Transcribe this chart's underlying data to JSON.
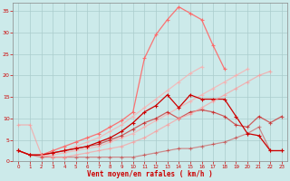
{
  "x": [
    0,
    1,
    2,
    3,
    4,
    5,
    6,
    7,
    8,
    9,
    10,
    11,
    12,
    13,
    14,
    15,
    16,
    17,
    18,
    19,
    20,
    21,
    22,
    23
  ],
  "line_rafales_max": [
    2.5,
    1.5,
    1.5,
    2.5,
    3.5,
    4.5,
    5.5,
    6.5,
    8.0,
    9.5,
    11.5,
    24.0,
    29.5,
    33.0,
    36.0,
    34.5,
    33.0,
    27.0,
    21.5,
    null,
    null,
    null,
    null,
    null
  ],
  "line_diag1": [
    null,
    null,
    1.5,
    2.0,
    2.5,
    3.5,
    4.5,
    5.5,
    7.0,
    8.5,
    10.5,
    12.5,
    14.5,
    16.5,
    18.5,
    20.5,
    22.0,
    null,
    null,
    null,
    null,
    null,
    null,
    null
  ],
  "line_diag2": [
    null,
    null,
    1.0,
    1.5,
    2.0,
    2.5,
    3.0,
    3.5,
    4.5,
    5.5,
    6.5,
    8.0,
    9.5,
    11.0,
    12.5,
    14.0,
    15.5,
    17.0,
    18.5,
    20.0,
    21.5,
    null,
    null,
    null
  ],
  "line_vent_moyen": [
    2.5,
    1.5,
    1.5,
    2.0,
    2.5,
    3.0,
    3.5,
    4.5,
    5.5,
    7.0,
    9.0,
    11.5,
    13.0,
    15.5,
    12.5,
    15.5,
    14.5,
    14.5,
    14.5,
    10.5,
    6.5,
    6.0,
    2.5,
    2.5
  ],
  "line_mid": [
    2.5,
    1.5,
    1.5,
    2.0,
    2.5,
    3.0,
    3.5,
    4.0,
    5.0,
    6.0,
    7.5,
    9.0,
    10.0,
    11.5,
    10.0,
    11.5,
    12.0,
    11.5,
    10.5,
    8.5,
    8.0,
    10.5,
    9.0,
    10.5
  ],
  "line_low": [
    2.5,
    1.5,
    1.0,
    1.0,
    1.0,
    1.0,
    1.0,
    1.0,
    1.0,
    1.0,
    1.0,
    1.5,
    2.0,
    2.5,
    3.0,
    3.0,
    3.5,
    4.0,
    4.5,
    5.5,
    6.5,
    8.0,
    2.5,
    2.5
  ],
  "line_pink_start": [
    8.5,
    8.5,
    1.5,
    1.0,
    1.0,
    1.5,
    2.0,
    2.5,
    3.0,
    3.5,
    4.5,
    5.5,
    7.0,
    8.5,
    10.0,
    11.0,
    12.5,
    14.0,
    15.5,
    17.0,
    18.5,
    20.0,
    21.0,
    null
  ],
  "bg_color": "#cceaea",
  "grid_color": "#aacccc",
  "xlabel": "Vent moyen/en rafales ( km/h )",
  "ylabel_ticks": [
    0,
    5,
    10,
    15,
    20,
    25,
    30,
    35
  ],
  "xlim": [
    -0.5,
    23.5
  ],
  "ylim": [
    0,
    37
  ]
}
